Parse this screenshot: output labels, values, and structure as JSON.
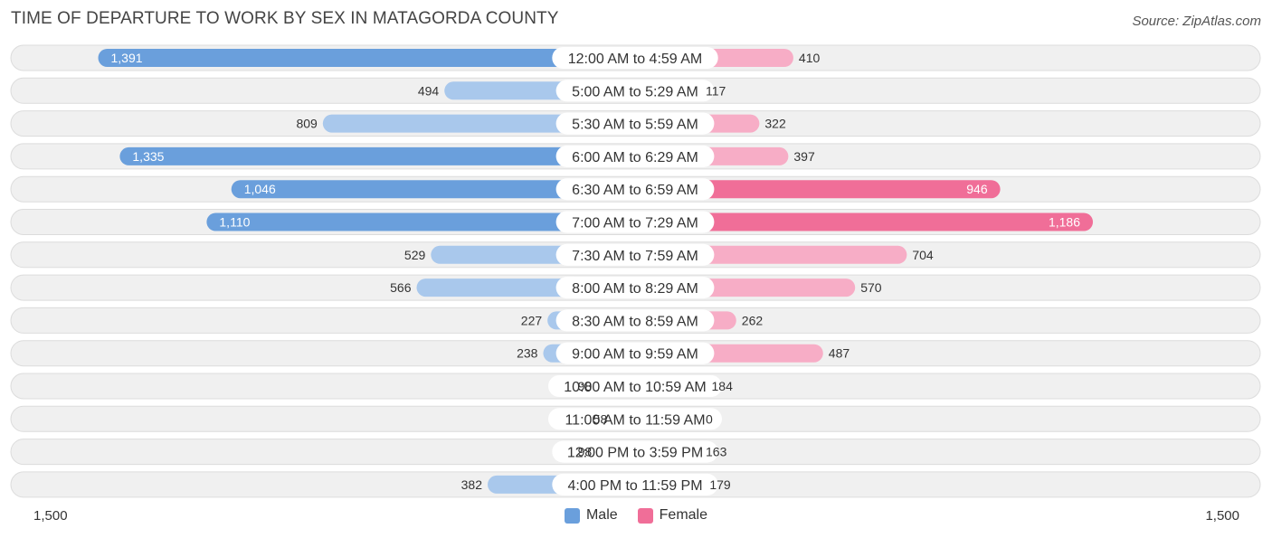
{
  "title": "TIME OF DEPARTURE TO WORK BY SEX IN MATAGORDA COUNTY",
  "source": "Source: ZipAtlas.com",
  "colors": {
    "male_strong": "#6a9fdc",
    "male_light": "#a9c8ec",
    "female_strong": "#f06e98",
    "female_light": "#f7adc6",
    "row_bg": "#f0f0f0",
    "row_border": "#dcdcdc"
  },
  "axis": {
    "left_label": "1,500",
    "right_label": "1,500"
  },
  "legend": {
    "male": "Male",
    "female": "Female"
  },
  "chart_data": {
    "type": "bar",
    "orientation": "horizontal-diverging",
    "title": "TIME OF DEPARTURE TO WORK BY SEX IN MATAGORDA COUNTY",
    "xlim": [
      -1500,
      1500
    ],
    "categories": [
      "12:00 AM to 4:59 AM",
      "5:00 AM to 5:29 AM",
      "5:30 AM to 5:59 AM",
      "6:00 AM to 6:29 AM",
      "6:30 AM to 6:59 AM",
      "7:00 AM to 7:29 AM",
      "7:30 AM to 7:59 AM",
      "8:00 AM to 8:29 AM",
      "8:30 AM to 8:59 AM",
      "9:00 AM to 9:59 AM",
      "10:00 AM to 10:59 AM",
      "11:00 AM to 11:59 AM",
      "12:00 PM to 3:59 PM",
      "4:00 PM to 11:59 PM"
    ],
    "series": [
      {
        "name": "Male",
        "values": [
          1391,
          494,
          809,
          1335,
          1046,
          1110,
          529,
          566,
          227,
          238,
          98,
          58,
          98,
          382
        ],
        "labels": [
          "1,391",
          "494",
          "809",
          "1,335",
          "1,046",
          "1,110",
          "529",
          "566",
          "227",
          "238",
          "98",
          "58",
          "98",
          "382"
        ]
      },
      {
        "name": "Female",
        "values": [
          410,
          117,
          322,
          397,
          946,
          1186,
          704,
          570,
          262,
          487,
          184,
          0,
          163,
          179
        ],
        "labels": [
          "410",
          "117",
          "322",
          "397",
          "946",
          "1,186",
          "704",
          "570",
          "262",
          "487",
          "184",
          "0",
          "163",
          "179"
        ]
      }
    ]
  }
}
